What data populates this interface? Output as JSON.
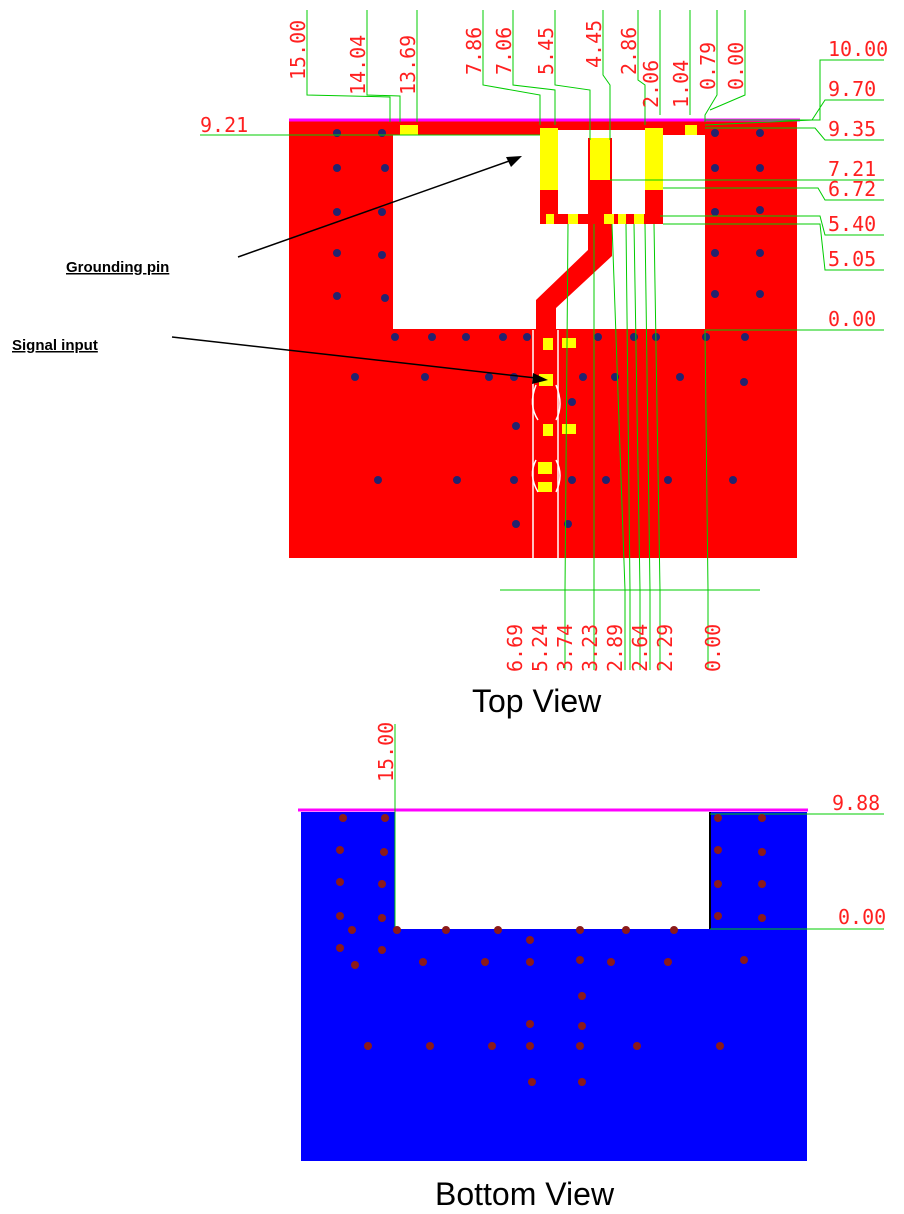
{
  "top_view": {
    "caption": "Top View",
    "callouts": {
      "grounding_pin": "Grounding pin",
      "signal_input": "Signal input"
    },
    "dims_top": [
      "15.00",
      "14.04",
      "13.69",
      "7.86",
      "7.06",
      "5.45",
      "4.45",
      "2.86",
      "2.06",
      "1.04",
      "0.79",
      "0.00"
    ],
    "dims_bottom": [
      "6.69",
      "5.24",
      "3.74",
      "3.23",
      "2.89",
      "2.64",
      "2.29",
      "0.00"
    ],
    "dims_right": [
      "10.00",
      "9.70",
      "9.35",
      "7.21",
      "6.72",
      "5.40",
      "5.05",
      "0.00"
    ],
    "dim_left": "9.21"
  },
  "bottom_view": {
    "caption": "Bottom View",
    "dim_top": "15.00",
    "dims_right": [
      "9.88",
      "0.00"
    ]
  },
  "colors": {
    "top_copper": "#ff0000",
    "bottom_copper": "#0000ff",
    "pad": "#ffff00",
    "dimension_line": "#00cc00",
    "dimension_text": "#ff2020",
    "edge": "#ff00ff",
    "via_top": "#23236e",
    "via_bottom": "#8b1a1a"
  }
}
